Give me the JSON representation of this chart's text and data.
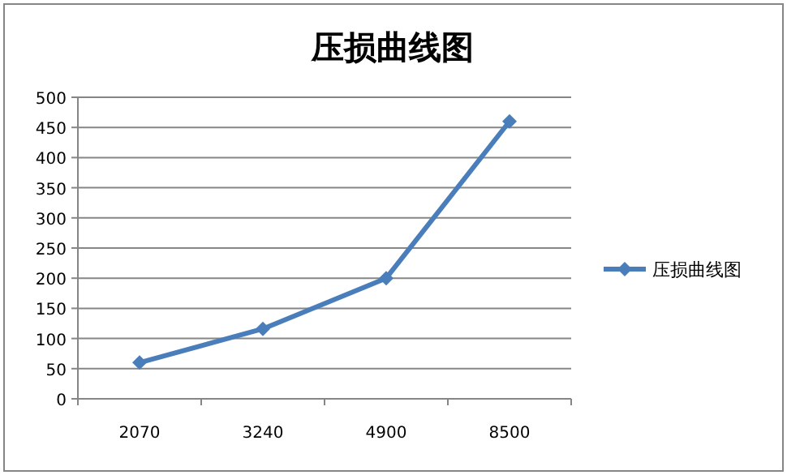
{
  "chart_data": {
    "type": "line",
    "title": "压损曲线图",
    "categories": [
      "2070",
      "3240",
      "4900",
      "8500"
    ],
    "series": [
      {
        "name": "压损曲线图",
        "color": "#4a7ebb",
        "values": [
          60,
          116,
          200,
          460
        ]
      }
    ],
    "ylim": [
      0,
      500
    ],
    "yticks": [
      0,
      50,
      100,
      150,
      200,
      250,
      300,
      350,
      400,
      450,
      500
    ],
    "grid": "y",
    "legend": "right",
    "marker": "diamond",
    "line_style": "solid"
  }
}
